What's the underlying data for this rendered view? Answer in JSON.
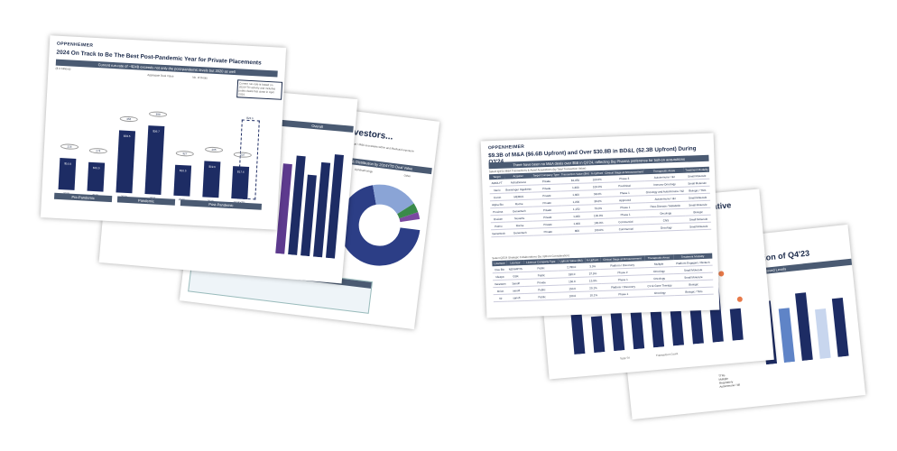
{
  "left_deck": {
    "main_slide": {
      "logo": "OPPENHEIMER",
      "title": "2024 On Track to Be The Best Post-Pandemic Year for Private Placements",
      "subtitle": "Current run-rate of ~$24B exceeds not only the post-pandemic levels but 2020 as well",
      "units": "($ in billions)",
      "legend": [
        "Aggregate Deal Value",
        "No. of Deals"
      ],
      "note": "Current run-rate is based on 2024YTD activity and includes public deals that close in April 2024",
      "categories": [
        "2018",
        "2019",
        "2020",
        "2021",
        "2022",
        "2023",
        "2024YTD"
      ],
      "values": [
        "$16.8",
        "$15.5",
        "$33.5",
        "$36.7",
        "$16.5",
        "$19.6",
        "$17.6"
      ],
      "deal_counts": [
        "216",
        "274",
        "358",
        "398",
        "327",
        "205",
        "237"
      ],
      "groups": [
        "Pre-Pandemic",
        "Pandemic",
        "Post-Pandemic"
      ],
      "runrate_label": "$23.6"
    },
    "middle_slide": {
      "header_right": "Overall"
    },
    "back_slide": {
      "title": "Investors...",
      "subtitle": "approvals, clinical / M&A successes within and Medicaid exposure",
      "legend_title": "& Distribution by 2024YTD Deal Value",
      "legend": [
        "Ophthalmology",
        "Other"
      ],
      "key_title": "Key Themes and Takeaways"
    }
  },
  "right_deck": {
    "main_slide": {
      "logo": "OPPENHEIMER",
      "title": "$9.3B of M&A ($6.6B Upfront) and Over $30.8B in BD&L ($2.3B Upfront) During Q3'24",
      "subtitle": "There have been no M&A deals over $5B in Q3'24, reflecting Big Pharma preference for bolt-on acquisitions",
      "table1_title": "Select Q3'24 M&A Transactions & Asset Acquisitions (by Total Transaction Value)",
      "columns": [
        "Target",
        "Acquirer",
        "Target Company Type",
        "Transaction Value ($M)",
        "% Upfront",
        "Clinical Stage at Announcement",
        "Therapeutic Areas",
        "Treatment Modality"
      ],
      "rows": [
        [
          "AMOLYT",
          "AstraZeneca",
          "Private",
          "$1,050",
          "100.0%",
          "Phase 3",
          "Autoimmune / I&I",
          "Small Molecule"
        ],
        [
          "Nerio",
          "Boehringer Ingelheim",
          "Private",
          "1,300",
          "100.0%",
          "Preclinical",
          "Immuno-Oncology",
          "Small Molecule"
        ],
        [
          "Curon",
          "MERCK",
          "Private",
          "1,300",
          "58.0%",
          "Phase 1",
          "Oncology and Autoimmune / I&I",
          "Biologic / TKIs"
        ],
        [
          "Alpha Bio",
          "Roche",
          "Private",
          "1,200",
          "36.0%",
          "Approved",
          "Autoimmune / I&I",
          "Small Molecule"
        ],
        [
          "Proxima",
          "Genentech",
          "Private",
          "1,150",
          "73.0%",
          "Phase 1",
          "Para-Disease / Metabolic",
          "Small Molecule"
        ],
        [
          "Ossium",
          "Novartis",
          "Private",
          "1,000",
          "100.0%",
          "Phase 1",
          "Oncology",
          "Biologic"
        ],
        [
          "Pulmo",
          "Roche",
          "Private",
          "1,000",
          "100.0%",
          "Commercial",
          "CNS",
          "Small Molecule"
        ],
        [
          "Genentech",
          "Genentech",
          "Private",
          "800",
          "100.0%",
          "Commercial",
          "Oncology",
          "Small Molecule"
        ]
      ],
      "table2_title": "Select Q3'24 Strategic Collaborations (by Upfront Consideration)",
      "columns2": [
        "Licensee",
        "Licensor",
        "Licensor Company Type",
        "Upfront Value ($M)",
        "% Upfront",
        "Clinical Stage at Announcement",
        "Therapeutic Areas",
        "Treatment Modality"
      ],
      "rows2": [
        [
          "Cue Bio",
          "NOVARTIS",
          "Public",
          "2,780.0",
          "3.0%",
          "Platform / Discovery",
          "Multiple",
          "Platform Engagers / Biotech"
        ],
        [
          "Ideaya",
          "GSK",
          "Public",
          "180.0",
          "37.9%",
          "Phase 2",
          "Oncology",
          "Small Molecule"
        ],
        [
          "Verastem",
          "Sanofi",
          "Private",
          "150.0",
          "15.9%",
          "Phase 1",
          "Oncology",
          "Small Molecule"
        ],
        [
          "Orion",
          "sanofi",
          "Public",
          "150.0",
          "20.1%",
          "Platform / Discovery",
          "CV & Gene Therapy",
          "Biologic"
        ],
        [
          "Vir",
          "sanofi",
          "Public",
          "100.0",
          "10.1%",
          "Phase 1",
          "Oncology",
          "Biologic / TKIs"
        ]
      ]
    },
    "slide2": {
      "title": "The Narrative",
      "years": [
        "2015",
        "2016",
        "2017",
        "2018",
        "2019",
        "2020",
        "2021",
        "2022",
        "2023",
        "YTD'24"
      ],
      "legend": [
        "Total TV",
        "Transaction Count"
      ]
    },
    "slide3": {
      "title": "eption of Q4'23",
      "header": "at Approved Levels",
      "legend": [
        "TTRs",
        "Multiple",
        "Respiratory",
        "Autoimmune / I&I",
        "Ophthalmology",
        "CV & Metabolic",
        "CNS",
        "Infectious"
      ]
    }
  }
}
